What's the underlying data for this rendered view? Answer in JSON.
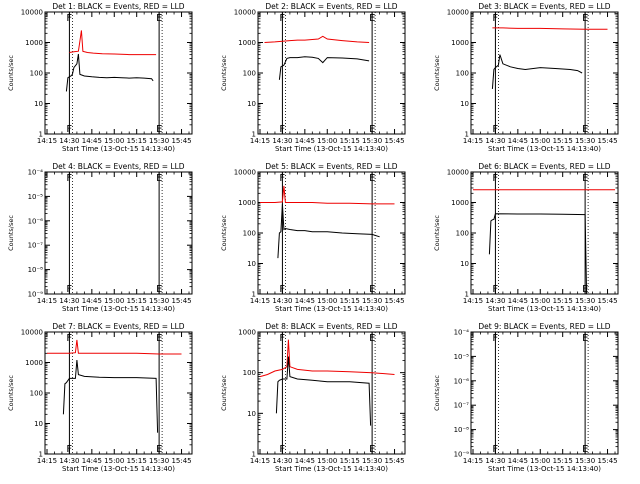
{
  "colors": {
    "events": "#000000",
    "lld": "#ee0000",
    "axis": "#000000",
    "background": "#ffffff"
  },
  "ylabel": "Counts/sec",
  "xlabel_text": "Start Time (13-Oct-15 14:13:40)",
  "x_ticks": [
    "14:15",
    "14:30",
    "14:45",
    "15:00",
    "15:15",
    "15:30",
    "15:45"
  ],
  "y_ticks_count": [
    "1",
    "10",
    "100",
    "1000",
    "10000"
  ],
  "y_ticks_tiny": [
    "10⁻⁹",
    "10⁻⁸",
    "10⁻⁷",
    "10⁻⁶",
    "10⁻⁵",
    "10⁻⁴"
  ],
  "chart_data": [
    {
      "type": "line",
      "title": "Det 1: BLACK = Events, RED = LLD",
      "xlabel": "Start Time (13-Oct-15 14:13:40)",
      "ylabel": "Counts/sec",
      "y_log": true,
      "ylim": [
        1,
        10000
      ],
      "y_ticks": "count",
      "xlim": [
        "14:13:40",
        "15:52"
      ],
      "markers": [
        {
          "x": "14:30",
          "label": "F"
        },
        {
          "x": "15:30",
          "label": "E"
        }
      ],
      "series": [
        {
          "name": "LLD",
          "color": "lld",
          "x": [
            "14:30",
            "14:33",
            "14:36",
            "14:37",
            "14:38",
            "14:39",
            "14:42",
            "14:46",
            "14:52",
            "15:00",
            "15:10",
            "15:20",
            "15:28"
          ],
          "values": [
            470,
            500,
            520,
            1100,
            2500,
            510,
            470,
            450,
            430,
            420,
            400,
            400,
            400
          ]
        },
        {
          "name": "Events",
          "color": "events",
          "x": [
            "14:28",
            "14:29",
            "14:30",
            "14:31",
            "14:32",
            "14:33",
            "14:35",
            "14:36",
            "14:37",
            "14:40",
            "14:45",
            "14:50",
            "14:55",
            "15:00",
            "15:05",
            "15:10",
            "15:15",
            "15:20",
            "15:25",
            "15:26"
          ],
          "values": [
            25,
            70,
            75,
            80,
            90,
            150,
            200,
            420,
            90,
            80,
            75,
            72,
            70,
            72,
            70,
            68,
            70,
            68,
            65,
            55
          ]
        }
      ]
    },
    {
      "type": "line",
      "title": "Det 2: BLACK = Events, RED = LLD",
      "xlabel": "Start Time (13-Oct-15 14:13:40)",
      "ylabel": "Counts/sec",
      "y_log": true,
      "ylim": [
        1,
        10000
      ],
      "y_ticks": "count",
      "xlim": [
        "14:13:40",
        "15:52"
      ],
      "markers": [
        {
          "x": "14:30",
          "label": "F"
        },
        {
          "x": "15:30",
          "label": "E"
        }
      ],
      "series": [
        {
          "name": "LLD",
          "color": "lld",
          "x": [
            "14:18",
            "14:25",
            "14:30",
            "14:35",
            "14:40",
            "14:45",
            "14:50",
            "14:54",
            "14:57",
            "15:00",
            "15:10",
            "15:20",
            "15:28"
          ],
          "values": [
            1000,
            1050,
            1100,
            1150,
            1200,
            1200,
            1250,
            1300,
            1600,
            1300,
            1150,
            1050,
            1000
          ]
        },
        {
          "name": "Events",
          "color": "events",
          "x": [
            "14:28",
            "14:29",
            "14:30",
            "14:31",
            "14:33",
            "14:35",
            "14:40",
            "14:45",
            "14:50",
            "14:54",
            "14:57",
            "15:00",
            "15:10",
            "15:20",
            "15:28"
          ],
          "values": [
            60,
            160,
            170,
            180,
            300,
            320,
            320,
            340,
            330,
            300,
            220,
            320,
            310,
            290,
            250
          ]
        }
      ]
    },
    {
      "type": "line",
      "title": "Det 3: BLACK = Events, RED = LLD",
      "xlabel": "Start Time (13-Oct-15 14:13:40)",
      "ylabel": "Counts/sec",
      "y_log": true,
      "ylim": [
        1,
        10000
      ],
      "y_ticks": "count",
      "xlim": [
        "14:13:40",
        "15:52"
      ],
      "markers": [
        {
          "x": "14:30",
          "label": "F"
        },
        {
          "x": "15:30",
          "label": "E"
        }
      ],
      "series": [
        {
          "name": "LLD",
          "color": "lld",
          "x": [
            "14:28",
            "14:35",
            "14:45",
            "15:00",
            "15:15",
            "15:30",
            "15:45"
          ],
          "values": [
            3000,
            3000,
            2900,
            2900,
            2800,
            2700,
            2700
          ]
        },
        {
          "name": "Events",
          "color": "events",
          "x": [
            "14:28",
            "14:29",
            "14:30",
            "14:32",
            "14:33",
            "14:35",
            "14:40",
            "14:45",
            "14:50",
            "15:00",
            "15:10",
            "15:20",
            "15:25",
            "15:28"
          ],
          "values": [
            30,
            130,
            150,
            180,
            400,
            200,
            160,
            140,
            130,
            150,
            140,
            130,
            120,
            100
          ]
        }
      ]
    },
    {
      "type": "line",
      "title": "Det 4: BLACK = Events, RED = LLD",
      "xlabel": "Start Time (13-Oct-15 14:13:40)",
      "ylabel": "Counts/sec",
      "y_log": true,
      "ylim": [
        1e-09,
        0.0001
      ],
      "y_ticks": "tiny",
      "xlim": [
        "14:13:40",
        "15:52"
      ],
      "markers": [
        {
          "x": "14:30",
          "label": "F"
        },
        {
          "x": "15:30",
          "label": "E"
        }
      ],
      "series": []
    },
    {
      "type": "line",
      "title": "Det 5: BLACK = Events, RED = LLD",
      "xlabel": "Start Time (13-Oct-15 14:13:40)",
      "ylabel": "Counts/sec",
      "y_log": true,
      "ylim": [
        1,
        10000
      ],
      "y_ticks": "count",
      "xlim": [
        "14:13:40",
        "15:52"
      ],
      "markers": [
        {
          "x": "14:30",
          "label": "F"
        },
        {
          "x": "15:30",
          "label": "E"
        }
      ],
      "series": [
        {
          "name": "LLD",
          "color": "lld",
          "x": [
            "14:15",
            "14:25",
            "14:30",
            "14:31",
            "14:32",
            "14:33",
            "14:40",
            "14:50",
            "15:00",
            "15:15",
            "15:30",
            "15:45"
          ],
          "values": [
            1000,
            1000,
            1050,
            3500,
            1000,
            1000,
            1000,
            1000,
            950,
            950,
            900,
            900
          ]
        },
        {
          "name": "Events",
          "color": "events",
          "x": [
            "14:27",
            "14:28",
            "14:29",
            "14:30",
            "14:31",
            "14:32",
            "14:35",
            "14:40",
            "14:45",
            "14:50",
            "15:00",
            "15:10",
            "15:20",
            "15:30",
            "15:35"
          ],
          "values": [
            15,
            100,
            110,
            900,
            130,
            140,
            130,
            120,
            120,
            110,
            110,
            100,
            95,
            90,
            75
          ]
        }
      ]
    },
    {
      "type": "line",
      "title": "Det 6: BLACK = Events, RED = LLD",
      "xlabel": "Start Time (13-Oct-15 14:13:40)",
      "ylabel": "Counts/sec",
      "y_log": true,
      "ylim": [
        1,
        10000
      ],
      "y_ticks": "count",
      "xlim": [
        "14:13:40",
        "15:52"
      ],
      "markers": [
        {
          "x": "14:30",
          "label": "F"
        },
        {
          "x": "15:30",
          "label": "E"
        }
      ],
      "series": [
        {
          "name": "LLD",
          "color": "lld",
          "x": [
            "14:15",
            "14:30",
            "14:45",
            "15:00",
            "15:15",
            "15:30",
            "15:45",
            "15:50"
          ],
          "values": [
            2600,
            2600,
            2600,
            2600,
            2600,
            2600,
            2600,
            2600
          ]
        },
        {
          "name": "Events",
          "color": "events",
          "x": [
            "14:26",
            "14:27",
            "14:28",
            "14:29",
            "14:30",
            "14:45",
            "15:00",
            "15:15",
            "15:30",
            "15:31"
          ],
          "values": [
            20,
            250,
            270,
            280,
            430,
            420,
            420,
            410,
            400,
            1
          ]
        }
      ]
    },
    {
      "type": "line",
      "title": "Det 7: BLACK = Events, RED = LLD",
      "xlabel": "Start Time (13-Oct-15 14:13:40)",
      "ylabel": "Counts/sec",
      "y_log": true,
      "ylim": [
        1,
        10000
      ],
      "y_ticks": "count",
      "xlim": [
        "14:13:40",
        "15:52"
      ],
      "markers": [
        {
          "x": "14:30",
          "label": "F"
        },
        {
          "x": "15:30",
          "label": "E"
        }
      ],
      "series": [
        {
          "name": "LLD",
          "color": "lld",
          "x": [
            "14:15",
            "14:30",
            "14:34",
            "14:35",
            "14:36",
            "14:40",
            "15:00",
            "15:15",
            "15:30",
            "15:45"
          ],
          "values": [
            2000,
            2000,
            2100,
            5500,
            2000,
            2000,
            2000,
            2000,
            1900,
            1900
          ]
        },
        {
          "name": "Events",
          "color": "events",
          "x": [
            "14:26",
            "14:27",
            "14:28",
            "14:30",
            "14:34",
            "14:35",
            "14:36",
            "14:40",
            "14:50",
            "15:00",
            "15:15",
            "15:28",
            "15:29"
          ],
          "values": [
            20,
            200,
            220,
            300,
            300,
            1200,
            400,
            350,
            330,
            320,
            320,
            300,
            5
          ]
        }
      ]
    },
    {
      "type": "line",
      "title": "Det 8: BLACK = Events, RED = LLD",
      "xlabel": "Start Time (13-Oct-15 14:13:40)",
      "ylabel": "Counts/sec",
      "y_log": true,
      "ylim": [
        1,
        1000
      ],
      "y_ticks": "count",
      "xlim": [
        "14:13:40",
        "15:52"
      ],
      "markers": [
        {
          "x": "14:30",
          "label": "F"
        },
        {
          "x": "15:30",
          "label": "E"
        }
      ],
      "series": [
        {
          "name": "LLD",
          "color": "lld",
          "x": [
            "14:15",
            "14:20",
            "14:25",
            "14:30",
            "14:33",
            "14:34",
            "14:35",
            "14:40",
            "14:50",
            "15:00",
            "15:15",
            "15:30",
            "15:45"
          ],
          "values": [
            80,
            90,
            110,
            120,
            140,
            650,
            140,
            120,
            110,
            110,
            105,
            100,
            90
          ]
        },
        {
          "name": "Events",
          "color": "events",
          "x": [
            "14:26",
            "14:27",
            "14:28",
            "14:30",
            "14:33",
            "14:34",
            "14:35",
            "14:40",
            "14:50",
            "15:00",
            "15:15",
            "15:28",
            "15:29"
          ],
          "values": [
            10,
            60,
            65,
            70,
            70,
            250,
            80,
            70,
            65,
            60,
            60,
            55,
            5
          ]
        }
      ]
    },
    {
      "type": "line",
      "title": "Det 9: BLACK = Events, RED = LLD",
      "xlabel": "Start Time (13-Oct-15 14:13:40)",
      "ylabel": "Counts/sec",
      "y_log": true,
      "ylim": [
        1e-09,
        0.0001
      ],
      "y_ticks": "tiny",
      "xlim": [
        "14:13:40",
        "15:52"
      ],
      "markers": [
        {
          "x": "14:30",
          "label": "F"
        },
        {
          "x": "15:30",
          "label": "E"
        }
      ],
      "series": []
    }
  ]
}
